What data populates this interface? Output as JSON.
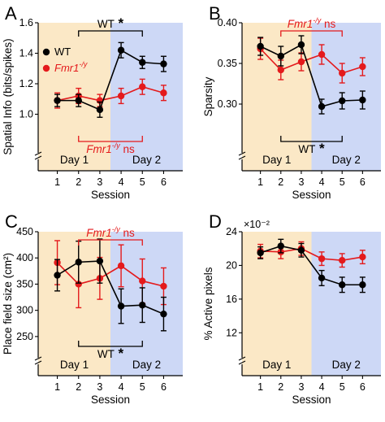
{
  "colors": {
    "wt": "#000000",
    "fmr1": "#e41a1c",
    "day1": "#fbe8c6",
    "day2": "#cdd8f6"
  },
  "legend": {
    "wt": "WT",
    "fmr1_base": "Fmr1",
    "fmr1_sup": "-/y"
  },
  "chart_data": [
    {
      "panel": "A",
      "type": "line",
      "ylabel": "Spatial Info (bits/spikes)",
      "xlabel": "Session",
      "ylim": [
        0.8,
        1.6
      ],
      "yticks": [
        "1.0",
        "1.2",
        "1.4",
        "1.6"
      ],
      "ytick_values": [
        1.0,
        1.2,
        1.4,
        1.6
      ],
      "x": [
        1,
        2,
        3,
        4,
        5,
        6
      ],
      "xtick_labels": [
        "1",
        "2",
        "3",
        "4",
        "5",
        "6"
      ],
      "day_labels": [
        "Day 1",
        "Day 2"
      ],
      "series": [
        {
          "name": "WT",
          "values": [
            1.09,
            1.09,
            1.03,
            1.42,
            1.34,
            1.33
          ],
          "err": [
            0.04,
            0.04,
            0.05,
            0.05,
            0.04,
            0.05
          ]
        },
        {
          "name": "Fmr1-/y",
          "values": [
            1.09,
            1.12,
            1.09,
            1.12,
            1.18,
            1.14
          ],
          "err": [
            0.05,
            0.05,
            0.04,
            0.05,
            0.05,
            0.05
          ]
        }
      ],
      "brackets": [
        {
          "label": "WT",
          "star": "*",
          "italic": false,
          "position": "top"
        },
        {
          "label": "Fmr1",
          "sup": "-/y",
          "suffix": " ns",
          "italic": true,
          "position": "bottom"
        }
      ]
    },
    {
      "panel": "B",
      "type": "line",
      "ylabel": "Sparsity",
      "xlabel": "Session",
      "ylim": [
        0.25,
        0.4
      ],
      "yticks": [
        "0.30",
        "0.35",
        "0.40"
      ],
      "ytick_values": [
        0.3,
        0.35,
        0.4
      ],
      "x": [
        1,
        2,
        3,
        4,
        5,
        6
      ],
      "xtick_labels": [
        "1",
        "2",
        "3",
        "4",
        "5",
        "6"
      ],
      "day_labels": [
        "Day 1",
        "Day 2"
      ],
      "series": [
        {
          "name": "WT",
          "values": [
            0.371,
            0.359,
            0.373,
            0.297,
            0.304,
            0.305
          ],
          "err": [
            0.011,
            0.012,
            0.011,
            0.009,
            0.01,
            0.011
          ]
        },
        {
          "name": "Fmr1-/y",
          "values": [
            0.368,
            0.342,
            0.352,
            0.361,
            0.338,
            0.346
          ],
          "err": [
            0.013,
            0.012,
            0.011,
            0.012,
            0.012,
            0.011
          ]
        }
      ],
      "brackets": [
        {
          "label": "Fmr1",
          "sup": "-/y",
          "suffix": " ns",
          "italic": true,
          "position": "top"
        },
        {
          "label": "WT",
          "star": "*",
          "italic": false,
          "position": "bottom"
        }
      ]
    },
    {
      "panel": "C",
      "type": "line",
      "ylabel": "Place field size (cm²)",
      "xlabel": "Session",
      "ylim": [
        225,
        450
      ],
      "yticks": [
        "250",
        "300",
        "350",
        "400",
        "450"
      ],
      "ytick_values": [
        250,
        300,
        350,
        400,
        450
      ],
      "x": [
        1,
        2,
        3,
        4,
        5,
        6
      ],
      "xtick_labels": [
        "1",
        "2",
        "3",
        "4",
        "5",
        "6"
      ],
      "day_labels": [
        "Day 1",
        "Day 2"
      ],
      "series": [
        {
          "name": "WT",
          "values": [
            367,
            392,
            394,
            308,
            310,
            293
          ],
          "err": [
            30,
            40,
            42,
            33,
            33,
            32
          ]
        },
        {
          "name": "Fmr1-/y",
          "values": [
            391,
            350,
            361,
            385,
            356,
            346
          ],
          "err": [
            42,
            45,
            40,
            40,
            42,
            35
          ]
        }
      ],
      "brackets": [
        {
          "label": "Fmr1",
          "sup": "-/y",
          "suffix": " ns",
          "italic": true,
          "position": "top"
        },
        {
          "label": "WT",
          "star": "*",
          "italic": false,
          "position": "bottom"
        }
      ]
    },
    {
      "panel": "D",
      "type": "line",
      "ylabel": "% Active pixels",
      "xlabel": "Session",
      "y_multiplier": "×10⁻²",
      "ylim": [
        10,
        24
      ],
      "yticks": [
        "12",
        "16",
        "20",
        "24"
      ],
      "ytick_values": [
        12,
        16,
        20,
        24
      ],
      "x": [
        1,
        2,
        3,
        4,
        5,
        6
      ],
      "xtick_labels": [
        "1",
        "2",
        "3",
        "4",
        "5",
        "6"
      ],
      "day_labels": [
        "Day 1",
        "Day 2"
      ],
      "series": [
        {
          "name": "WT",
          "values": [
            21.5,
            22.3,
            21.8,
            18.5,
            17.7,
            17.7
          ],
          "err": [
            0.7,
            0.8,
            0.8,
            0.9,
            0.9,
            0.9
          ]
        },
        {
          "name": "Fmr1-/y",
          "values": [
            21.7,
            21.6,
            22.0,
            20.8,
            20.6,
            21.0
          ],
          "err": [
            0.8,
            0.8,
            0.8,
            0.8,
            0.8,
            0.8
          ]
        }
      ],
      "brackets": []
    }
  ]
}
